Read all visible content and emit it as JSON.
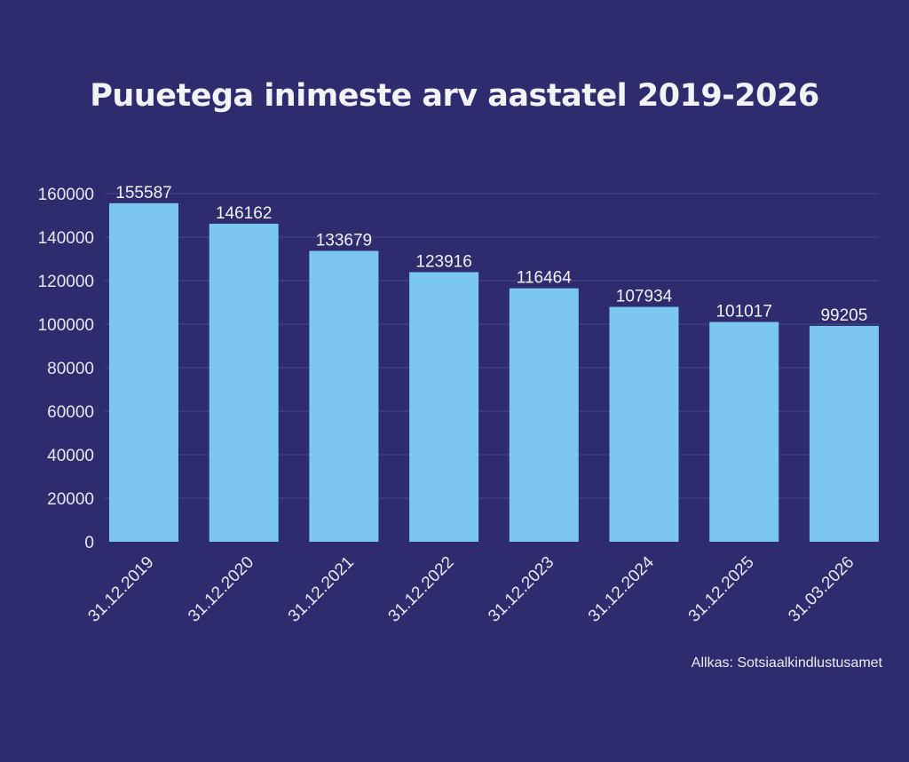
{
  "title": "Puuetega inimeste arv aastatel 2019-2026",
  "source": "Allkas: Sotsiaalkindlustusamet",
  "colors": {
    "background": "#2e2b6e",
    "bar": "#7bc7ef",
    "grid": "#4a4a8c",
    "text": "#f2f2f7"
  },
  "chart_data": {
    "type": "bar",
    "title": "Puuetega inimeste arv aastatel 2019-2026",
    "xlabel": "",
    "ylabel": "",
    "categories": [
      "31.12.2019",
      "31.12.2020",
      "31.12.2021",
      "31.12.2022",
      "31.12.2023",
      "31.12.2024",
      "31.12.2025",
      "31.03.2026"
    ],
    "values": [
      155587,
      146162,
      133679,
      123916,
      116464,
      107934,
      101017,
      99205
    ],
    "data_labels": [
      "155587",
      "146162",
      "133679",
      "123916",
      "116464",
      "107934",
      "101017",
      "99205"
    ],
    "yticks": [
      "0",
      "20000",
      "40000",
      "60000",
      "80000",
      "100000",
      "120000",
      "140000",
      "160000"
    ],
    "ylim": [
      0,
      160000
    ],
    "grid": true,
    "legend": "none"
  }
}
